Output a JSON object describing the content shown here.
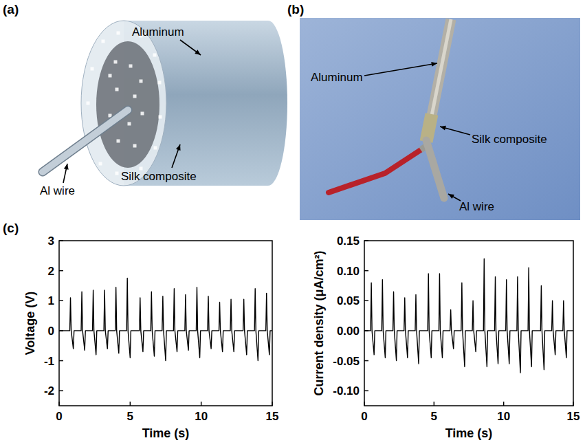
{
  "panels": [
    {
      "letter": "(a)",
      "labels": [
        "Aluminum",
        "Al wire",
        "Silk composite"
      ]
    },
    {
      "letter": "(b)",
      "labels": [
        "Aluminum",
        "Silk composite",
        "Al wire"
      ]
    },
    {
      "letter": "(c)"
    }
  ],
  "chart_data": [
    {
      "type": "line",
      "xlabel": "Time (s)",
      "ylabel": "Voltage (V)",
      "color": "#000000",
      "xlim": [
        0,
        15
      ],
      "xticks": [
        0,
        5,
        10,
        15
      ],
      "ylim": [
        -2.5,
        3
      ],
      "yticks": [
        -2,
        -1,
        0,
        1,
        2,
        3
      ],
      "grid": false,
      "x": [
        0,
        0.75,
        0.8,
        0.85,
        1.0,
        1.05,
        1.55,
        1.6,
        1.65,
        1.8,
        1.85,
        2.35,
        2.4,
        2.45,
        2.6,
        2.65,
        3.15,
        3.2,
        3.25,
        3.4,
        3.45,
        3.95,
        4.0,
        4.05,
        4.2,
        4.25,
        4.75,
        4.8,
        4.85,
        5.0,
        5.05,
        5.65,
        5.7,
        5.75,
        5.9,
        5.95,
        6.45,
        6.5,
        6.55,
        6.7,
        6.75,
        7.25,
        7.3,
        7.35,
        7.5,
        7.55,
        8.05,
        8.1,
        8.15,
        8.3,
        8.35,
        8.85,
        8.9,
        8.95,
        9.1,
        9.15,
        9.65,
        9.7,
        9.75,
        9.9,
        9.95,
        10.45,
        10.5,
        10.55,
        10.7,
        10.75,
        11.25,
        11.3,
        11.35,
        11.5,
        11.55,
        12.05,
        12.1,
        12.15,
        12.3,
        12.35,
        12.95,
        13.0,
        13.05,
        13.2,
        13.25,
        13.75,
        13.8,
        13.85,
        14.0,
        14.05,
        14.55,
        14.6,
        14.65,
        14.8,
        14.85,
        15
      ],
      "values": [
        0,
        0,
        1.1,
        0,
        -0.6,
        0,
        0,
        1.3,
        0,
        -0.65,
        0,
        0,
        1.35,
        0,
        -0.8,
        0,
        0,
        1.35,
        0,
        -0.6,
        0,
        0,
        1.45,
        0,
        -0.75,
        0,
        0,
        1.75,
        0,
        -0.9,
        0,
        0,
        1.1,
        0,
        -0.7,
        0,
        0,
        1.3,
        0,
        -0.85,
        0,
        0,
        1.15,
        0,
        -1.0,
        0,
        0,
        1.4,
        0,
        -0.7,
        0,
        0,
        1.2,
        0,
        -0.65,
        0,
        0,
        1.45,
        0,
        -0.9,
        0,
        0,
        1.15,
        0,
        -0.6,
        0,
        0,
        0.95,
        0,
        -0.7,
        0,
        0,
        1.05,
        0,
        -0.7,
        0,
        0,
        1.05,
        0,
        -0.8,
        0,
        0,
        1.4,
        0,
        -1.0,
        0,
        0,
        1.25,
        0,
        -0.8,
        0,
        0
      ]
    },
    {
      "type": "line",
      "xlabel": "Time (s)",
      "ylabel": "Current density (μA/cm²)",
      "color": "#000000",
      "xlim": [
        0,
        15
      ],
      "xticks": [
        0,
        5,
        10,
        15
      ],
      "ylim": [
        -0.125,
        0.15
      ],
      "yticks": [
        {
          "value": -0.1,
          "label": "-0.10"
        },
        -0.05,
        {
          "value": 0,
          "label": "0.00"
        },
        0.05,
        {
          "value": 0.1,
          "label": "0.10"
        },
        0.15
      ],
      "grid": false,
      "x": [
        0,
        0.45,
        0.5,
        0.55,
        0.7,
        0.75,
        1.25,
        1.3,
        1.35,
        1.5,
        1.55,
        2.05,
        2.1,
        2.15,
        2.3,
        2.35,
        2.85,
        2.9,
        2.95,
        3.1,
        3.15,
        3.65,
        3.7,
        3.75,
        3.9,
        3.95,
        4.55,
        4.6,
        4.65,
        4.8,
        4.85,
        5.35,
        5.4,
        5.45,
        5.6,
        5.65,
        6.15,
        6.2,
        6.25,
        6.4,
        6.45,
        6.95,
        7.0,
        7.05,
        7.2,
        7.25,
        7.75,
        7.8,
        7.85,
        8.0,
        8.05,
        8.55,
        8.6,
        8.65,
        8.8,
        8.85,
        9.35,
        9.4,
        9.45,
        9.6,
        9.65,
        10.15,
        10.2,
        10.25,
        10.4,
        10.45,
        10.95,
        11.0,
        11.05,
        11.2,
        11.25,
        11.75,
        11.8,
        11.85,
        12.0,
        12.05,
        12.65,
        12.7,
        12.75,
        12.9,
        12.95,
        13.45,
        13.5,
        13.55,
        13.7,
        13.75,
        14.25,
        14.3,
        14.35,
        14.5,
        14.55,
        15
      ],
      "values": [
        0,
        0,
        0.08,
        0,
        -0.04,
        0,
        0,
        0.085,
        0,
        -0.045,
        0,
        0,
        0.065,
        0,
        -0.05,
        0,
        0,
        0.055,
        0,
        -0.045,
        0,
        0,
        0.06,
        0,
        -0.055,
        0,
        0,
        0.095,
        0,
        -0.045,
        0,
        0,
        0.095,
        0,
        -0.045,
        0,
        0,
        0.035,
        0,
        -0.03,
        0,
        0,
        0.08,
        0,
        -0.06,
        0,
        0,
        0.05,
        0,
        -0.035,
        0,
        0,
        0.12,
        0,
        -0.06,
        0,
        0,
        0.09,
        0,
        -0.055,
        0,
        0,
        0.085,
        0,
        -0.055,
        0,
        0,
        0.09,
        0,
        -0.07,
        0,
        0,
        0.105,
        0,
        -0.06,
        0,
        0,
        0.075,
        0,
        -0.065,
        0,
        0,
        0.05,
        0,
        -0.04,
        0,
        0,
        0.05,
        0,
        -0.045,
        0,
        0
      ]
    }
  ]
}
